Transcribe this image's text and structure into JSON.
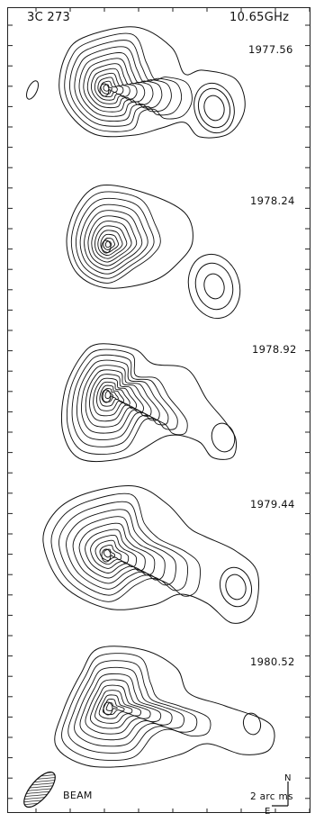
{
  "figure": {
    "source": "3C 273",
    "frequency": "10.65GHz",
    "epochs": [
      "1977.56",
      "1978.24",
      "1978.92",
      "1979.44",
      "1980.52"
    ],
    "beam_label": "BEAM",
    "scale_label": "2 arc ms",
    "north_label": "N",
    "east_label": "E"
  },
  "panels": [
    {
      "epoch": "1977.56",
      "core_levels": 11,
      "jet_levels": 3,
      "has_side_blob": true
    },
    {
      "epoch": "1978.24",
      "core_levels": 11,
      "jet_levels": 3,
      "has_side_blob": false
    },
    {
      "epoch": "1978.92",
      "core_levels": 11,
      "jet_levels": 2,
      "has_side_blob": false
    },
    {
      "epoch": "1979.44",
      "core_levels": 10,
      "jet_levels": 2,
      "has_side_blob": false
    },
    {
      "epoch": "1980.52",
      "core_levels": 10,
      "jet_levels": 2,
      "has_side_blob": false
    }
  ]
}
